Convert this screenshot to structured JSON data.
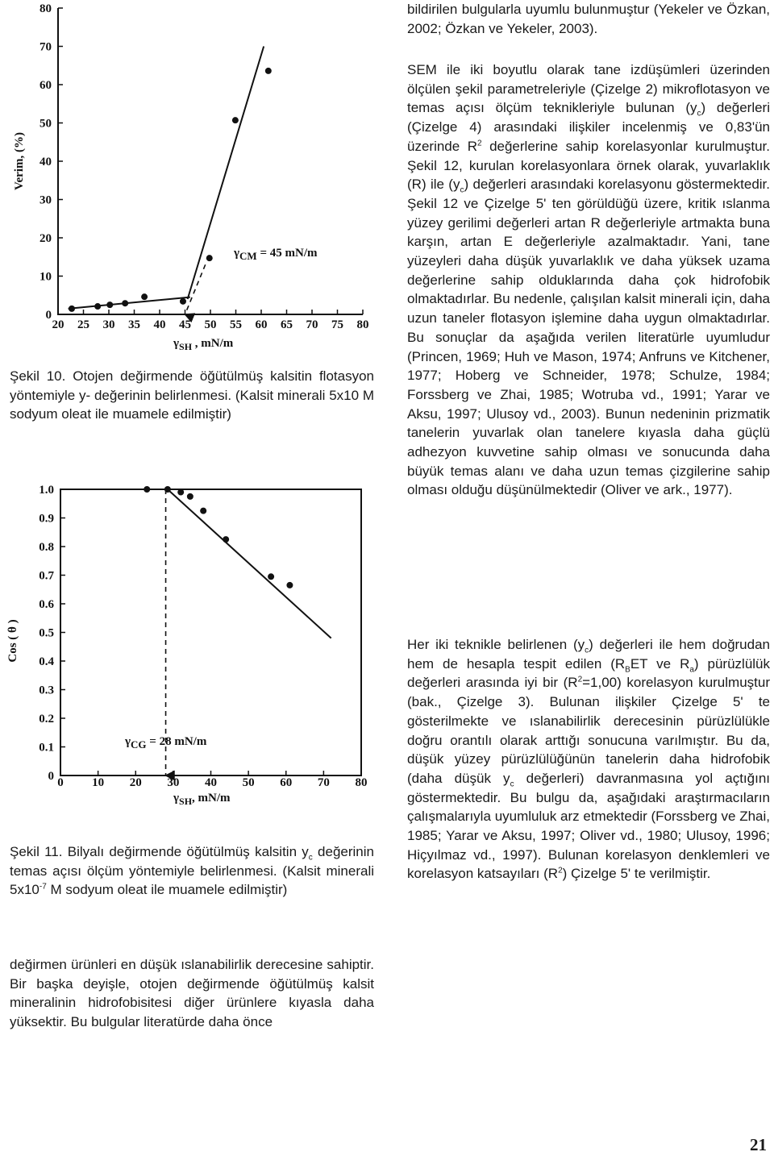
{
  "chart_data": [
    {
      "type": "scatter",
      "y_label": "Verim, (%)",
      "x_label": [
        "γ",
        "SH",
        " , mN/m"
      ],
      "annotation": [
        "γ",
        "CM",
        " = 45 mN/m"
      ],
      "xlim": [
        20,
        80
      ],
      "xticks": [
        20,
        25,
        30,
        35,
        40,
        45,
        50,
        55,
        60,
        65,
        70,
        75,
        80
      ],
      "ylim": [
        0,
        80
      ],
      "yticks": [
        0,
        10,
        20,
        30,
        40,
        50,
        60,
        70,
        80
      ],
      "frame": false,
      "color": "#111111",
      "x": [
        22.7,
        27.8,
        30.2,
        33.2,
        37,
        44.6,
        49.8,
        54.9,
        61.4
      ],
      "values": [
        1.5,
        2.1,
        2.5,
        2.9,
        4.6,
        3.4,
        14.7,
        50.7,
        63.6
      ],
      "lines": [
        {
          "x": [
            22,
            46
          ],
          "values": [
            1.5,
            4.5
          ]
        },
        {
          "x": [
            45.5,
            60.5
          ],
          "values": [
            4,
            70
          ]
        },
        {
          "x": [
            49,
            45
          ],
          "values": [
            13,
            0
          ],
          "style": "dashed"
        }
      ]
    },
    {
      "type": "scatter",
      "y_label": "Cos ( θ )",
      "x_label": [
        "γ",
        "SH",
        ", mN/m"
      ],
      "annotation": [
        "γ",
        "CG",
        " = 28 mN/m"
      ],
      "xlim": [
        0,
        80
      ],
      "xticks": [
        0,
        10,
        20,
        30,
        40,
        50,
        60,
        70,
        80
      ],
      "ylim": [
        0,
        1
      ],
      "yticks": [
        0,
        0.1,
        0.2,
        0.3,
        0.4,
        0.5,
        0.6,
        0.7,
        0.8,
        0.9,
        {
          "value": 1,
          "label": "1.0"
        }
      ],
      "frame": true,
      "color": "#111111",
      "x": [
        23,
        28.5,
        32,
        34.5,
        38,
        44,
        56,
        61
      ],
      "values": [
        1,
        1,
        0.99,
        0.975,
        0.925,
        0.825,
        0.695,
        0.665
      ],
      "lines": [
        {
          "x": [
            23,
            28.5
          ],
          "values": [
            1,
            1
          ]
        },
        {
          "x": [
            28.5,
            72
          ],
          "values": [
            1,
            0.48
          ]
        },
        {
          "x": [
            28,
            28
          ],
          "values": [
            1,
            0
          ],
          "style": "dashed"
        }
      ]
    }
  ],
  "captions": [
    [
      "Şekil 10. Otojen değirmende öğütülmüş kalsitin flotasyon yöntemiyle y- değerinin belirlenmesi. (Kalsit minerali 5x10 M sodyum oleat ile muamele edilmiştir)"
    ],
    [
      "Şekil 11. Bilyalı değirmende öğütülmüş kalsitin y",
      "c",
      " değerinin temas açısı ölçüm yöntemiyle belirlenmesi. (Kalsit minerali 5x10",
      "-7",
      " M sodyum oleat ile muamele edilmiştir)"
    ]
  ],
  "left_text": [
    "değirmen ürünleri en düşük ıslanabilirlik derecesine sahiptir. Bir başka deyişle, otojen değirmende öğütülmüş kalsit mineralinin hidrofobisitesi diğer ürünlere kıyasla daha yüksektir. Bu bulgular literatürde daha önce"
  ],
  "right_text": [
    [
      "bildirilen bulgularla uyumlu bulunmuştur (Yekeler ve Özkan, 2002; Özkan ve Yekeler, 2003)."
    ],
    [
      "SEM ile iki boyutlu olarak tane izdüşümleri üzerinden ölçülen şekil parametreleriyle (Çizelge 2) mikroflotasyon ve temas açısı ölçüm teknikleriyle bulunan (y",
      "c",
      ") değerleri (Çizelge 4) arasındaki ilişkiler incelenmiş ve 0,83'ün üzerinde R",
      "2",
      " değerlerine sahip korelasyonlar kurulmuştur. Şekil 12, kurulan korelasyonlara örnek olarak, yuvarlaklık (R) ile (y",
      "c",
      ") değerleri arasındaki korelasyonu göstermektedir. Şekil 12 ve Çizelge 5' ten görüldüğü üzere, kritik ıslanma yüzey gerilimi değerleri artan R değerleriyle artmakta buna karşın, artan E değerleriyle azalmaktadır. Yani, tane yüzeyleri daha düşük yuvarlaklık ve daha yüksek uzama değerlerine sahip olduklarında daha çok hidrofobik olmaktadırlar. Bu nedenle, çalışılan kalsit minerali için, daha uzun taneler flotasyon işlemine daha uygun olmaktadırlar. Bu sonuçlar da aşağıda verilen literatürle uyumludur (Princen, 1969; Huh ve Mason, 1974; Anfruns ve Kitchener, 1977; Hoberg ve Schneider, 1978; Schulze, 1984; Forssberg ve Zhai, 1985; Wotruba vd., 1991; Yarar ve Aksu, 1997; Ulusoy vd., 2003). Bunun nedeninin prizmatik tanelerin yuvarlak olan tanelere kıyasla daha güçlü adhezyon kuvvetine sahip olması ve sonucunda daha büyük temas alanı ve daha uzun temas çizgilerine sahip olması olduğu düşünülmektedir (Oliver ve ark., 1977)."
    ],
    [
      "Her iki teknikle belirlenen (y",
      "c",
      ") değerleri ile hem doğrudan hem de hesapla tespit edilen (R",
      "B",
      "ET ve R",
      "a",
      ") pürüzlülük değerleri arasında iyi bir (R",
      "2",
      "=1,00) korelasyon kurulmuştur (bak., Çizelge 3). Bulunan ilişkiler Çizelge 5' te gösterilmekte ve ıslanabilirlik derecesinin pürüzlülükle doğru orantılı olarak arttığı sonucuna varılmıştır. Bu da, düşük yüzey pürüzlülüğünün tanelerin daha hidrofobik (daha düşük y",
      "c",
      " değerleri) davranmasına yol açtığını göstermektedir. Bu bulgu da, aşağıdaki araştırmacıların çalışmalarıyla uyumluluk arz etmektedir (Forssberg ve Zhai, 1985; Yarar ve Aksu, 1997; Oliver vd., 1980; Ulusoy, 1996; Hiçyılmaz vd., 1997). Bulunan korelasyon denklemleri ve korelasyon katsayıları (R",
      "2",
      ") Çizelge 5' te verilmiştir."
    ]
  ],
  "page_number": "21"
}
